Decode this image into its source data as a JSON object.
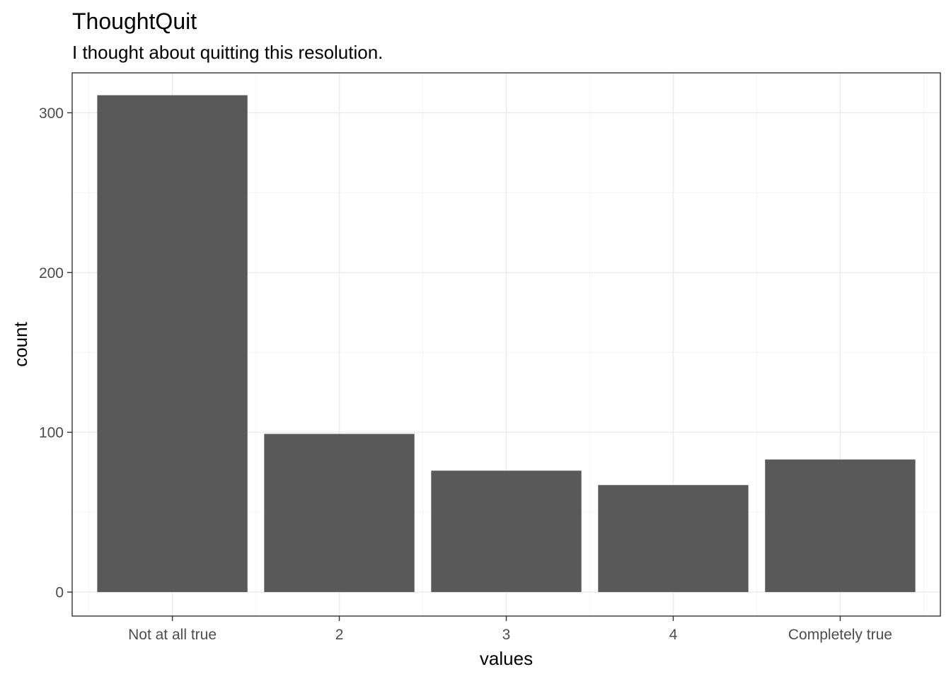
{
  "chart_data": {
    "type": "bar",
    "title": "ThoughtQuit",
    "subtitle": "I thought about quitting this resolution.",
    "xlabel": "values",
    "ylabel": "count",
    "categories": [
      "Not at all true",
      "2",
      "3",
      "4",
      "Completely true"
    ],
    "values": [
      311,
      99,
      76,
      67,
      83
    ],
    "ylim": [
      -15,
      325
    ],
    "yticks": [
      0,
      100,
      200,
      300
    ],
    "grid": true,
    "legend": "none",
    "colors": {
      "bar": "#595959",
      "grid_major": "#ebebeb",
      "grid_minor": "#f5f5f5",
      "panel_border": "#333333",
      "tick_label": "#4d4d4d"
    }
  }
}
